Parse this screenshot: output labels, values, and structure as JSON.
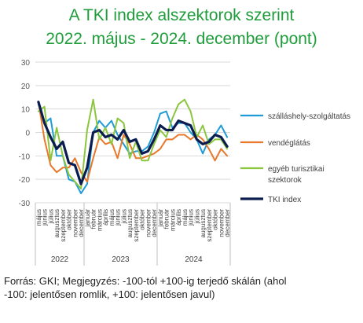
{
  "title_line1": "A TKI index alszektorok szerint",
  "title_line2": "2022. május - 2024. december (pont)",
  "source_line1": "Forrás: GKI; Megjegyzés: -100-tól +100-ig terjedő skálán (ahol",
  "source_line2": "-100: jelentősen romlik, +100: jelentősen javul)",
  "colors": {
    "title": "#1f9d3a",
    "szallashely": "#1f9bd7",
    "vendeglatas": "#e8782a",
    "egyeb": "#8cc63f",
    "tki": "#0b1d4f",
    "grid": "#d9d9d9"
  },
  "chart_data": {
    "type": "line",
    "title": "",
    "xlabel": "",
    "ylabel": "",
    "ylim": [
      -30,
      30
    ],
    "yticks": [
      30,
      20,
      10,
      0,
      -10,
      -20,
      -30
    ],
    "grid": true,
    "legend_position": "right",
    "categories": [
      "május",
      "június",
      "július",
      "augusztus",
      "szeptember",
      "október",
      "november",
      "december",
      "január",
      "február",
      "március",
      "április",
      "május",
      "június",
      "július",
      "augusztus",
      "szeptember",
      "október",
      "november",
      "december",
      "január",
      "február",
      "március",
      "április",
      "május",
      "június",
      "július",
      "augusztus",
      "szeptember",
      "október",
      "november",
      "december"
    ],
    "years": [
      {
        "label": "2022",
        "months": 8
      },
      {
        "label": "2023",
        "months": 12
      },
      {
        "label": "2024",
        "months": 12
      }
    ],
    "series": [
      {
        "name": "szálláshely-szolgáltatás",
        "color_key": "szallashely",
        "values": [
          12,
          4,
          6,
          -10,
          -10,
          -20,
          -21,
          -26,
          -22,
          0,
          5,
          2,
          5,
          -1,
          -5,
          -9,
          -8,
          -8,
          -6,
          0,
          8,
          9,
          2,
          4,
          4,
          0,
          -3,
          -9,
          -3,
          -1,
          3,
          -2
        ]
      },
      {
        "name": "vendéglátás",
        "color_key": "vendeglatas",
        "values": [
          13,
          -3,
          -14,
          -17,
          -15,
          -15,
          -11,
          -17,
          -21,
          -11,
          -2,
          -5,
          -4,
          -11,
          -1,
          -5,
          -11,
          -11,
          -10,
          -9,
          -7,
          -3,
          -3,
          -1,
          -1,
          -3,
          -1,
          -3,
          -7,
          -12,
          -7,
          -10
        ]
      },
      {
        "name": "egyéb turisztikai szektorok",
        "color_key": "egyeb",
        "values": [
          9,
          11,
          -12,
          2,
          -10,
          -18,
          -21,
          -24,
          1,
          14,
          -3,
          2,
          -5,
          6,
          4,
          -11,
          -4,
          -12,
          -12,
          -5,
          1,
          -2,
          6,
          12,
          14,
          9,
          -2,
          3,
          -5,
          -3,
          -3,
          -7
        ]
      },
      {
        "name": "TKI index",
        "color_key": "tki",
        "values": [
          13,
          4,
          -2,
          -7,
          -4,
          -13,
          -14,
          -22,
          -15,
          0,
          1,
          -2,
          -1,
          -3,
          1,
          -4,
          -3,
          -9,
          -8,
          -3,
          3,
          1,
          1,
          5,
          4,
          3,
          -3,
          -5,
          -4,
          -1,
          -2,
          -6
        ]
      }
    ]
  }
}
